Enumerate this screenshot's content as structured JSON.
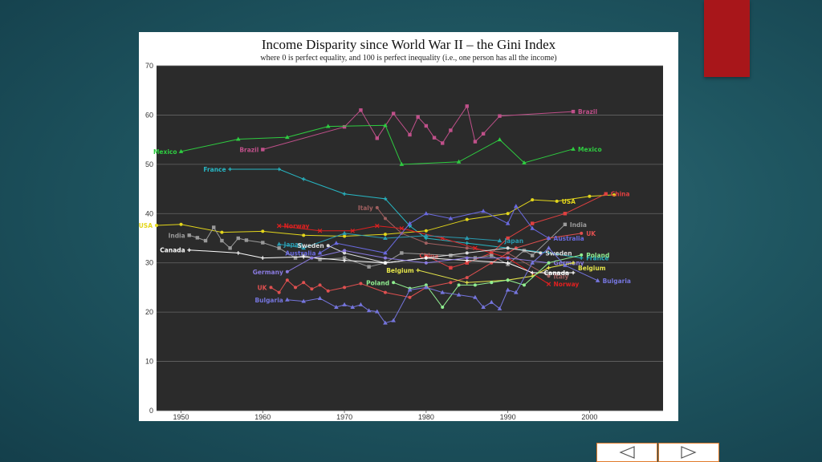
{
  "slide": {
    "title": "Income Disparity since World War II – the Gini Index",
    "subtitle": "where 0 is perfect equality, and 100 is perfect inequality (i.e., one person has all the income)",
    "accent_color": "#a8161a",
    "nav": {
      "prev_icon": "left-arrow-icon",
      "next_icon": "right-arrow-icon",
      "border_color": "#e07a2a"
    }
  },
  "chart_data": {
    "type": "line",
    "title": "Income Disparity since World War II – the Gini Index",
    "subtitle": "where 0 is perfect equality, and 100 is perfect inequality (i.e., one person has all the income)",
    "xlim": [
      1947,
      2009
    ],
    "ylim": [
      0,
      70
    ],
    "x_ticks": [
      1950,
      1960,
      1970,
      1980,
      1990,
      2000
    ],
    "y_ticks": [
      0,
      10,
      20,
      30,
      40,
      50,
      60,
      70
    ],
    "grid": "horizontal",
    "background": "#2b2b2b",
    "series": [
      {
        "name": "Brazil",
        "color": "#c0508a",
        "marker": "square",
        "points": [
          [
            1960,
            53
          ],
          [
            1970,
            57.6
          ],
          [
            1972,
            61
          ],
          [
            1974,
            55.3
          ],
          [
            1976,
            60.3
          ],
          [
            1978,
            56
          ],
          [
            1979,
            59.6
          ],
          [
            1980,
            57.8
          ],
          [
            1981,
            55.4
          ],
          [
            1982,
            54.3
          ],
          [
            1983,
            56.9
          ],
          [
            1985,
            61.8
          ],
          [
            1986,
            54.6
          ],
          [
            1987,
            56.2
          ],
          [
            1989,
            59.8
          ],
          [
            1998,
            60.7
          ]
        ],
        "labels": [
          {
            "x": 1960,
            "y": 53,
            "side": "left"
          },
          {
            "x": 1998,
            "y": 60.7,
            "side": "right"
          }
        ]
      },
      {
        "name": "Mexico",
        "color": "#2ecc40",
        "marker": "triangle",
        "points": [
          [
            1950,
            52.6
          ],
          [
            1957,
            55.1
          ],
          [
            1963,
            55.5
          ],
          [
            1968,
            57.7
          ],
          [
            1975,
            57.9
          ],
          [
            1977,
            50
          ],
          [
            1984,
            50.5
          ],
          [
            1989,
            55
          ],
          [
            1992,
            50.3
          ],
          [
            1998,
            53.1
          ]
        ],
        "labels": [
          {
            "x": 1950,
            "y": 52.6,
            "side": "left"
          },
          {
            "x": 1998,
            "y": 53.1,
            "side": "right"
          }
        ]
      },
      {
        "name": "France",
        "color": "#27b7c4",
        "marker": "plus",
        "points": [
          [
            1956,
            49
          ],
          [
            1962,
            49
          ],
          [
            1965,
            47
          ],
          [
            1970,
            44
          ],
          [
            1975,
            43
          ],
          [
            1978,
            37.5
          ],
          [
            1980,
            35
          ],
          [
            1985,
            34
          ],
          [
            1990,
            33
          ],
          [
            1995,
            32
          ],
          [
            1999,
            31
          ]
        ],
        "labels": [
          {
            "x": 1956,
            "y": 49,
            "side": "left"
          },
          {
            "x": 1999,
            "y": 31,
            "side": "right"
          }
        ]
      },
      {
        "name": "USA",
        "color": "#e3d61b",
        "marker": "dot",
        "points": [
          [
            1947,
            37.6
          ],
          [
            1950,
            37.8
          ],
          [
            1955,
            36.2
          ],
          [
            1960,
            36.4
          ],
          [
            1965,
            35.6
          ],
          [
            1970,
            35.4
          ],
          [
            1975,
            35.8
          ],
          [
            1980,
            36.5
          ],
          [
            1985,
            38.8
          ],
          [
            1990,
            40
          ],
          [
            1993,
            42.8
          ],
          [
            1996,
            42.5
          ],
          [
            2000,
            43.5
          ],
          [
            2003,
            43.8
          ]
        ],
        "labels": [
          {
            "x": 1947,
            "y": 37.6,
            "side": "left"
          },
          {
            "x": 1996,
            "y": 42.5,
            "side": "right"
          }
        ]
      },
      {
        "name": "China",
        "color": "#e04040",
        "marker": "square",
        "points": [
          [
            1980,
            31.5
          ],
          [
            1983,
            29
          ],
          [
            1985,
            30
          ],
          [
            1988,
            32
          ],
          [
            1990,
            35
          ],
          [
            1993,
            38
          ],
          [
            1997,
            40
          ],
          [
            2002,
            44
          ]
        ],
        "labels": [
          {
            "x": 1982,
            "y": 31.5,
            "side": "left"
          },
          {
            "x": 2002,
            "y": 44,
            "side": "right"
          }
        ]
      },
      {
        "name": "India",
        "color": "#9a9a9a",
        "marker": "square",
        "points": [
          [
            1951,
            35.6
          ],
          [
            1952,
            35.1
          ],
          [
            1953,
            34.5
          ],
          [
            1954,
            37.2
          ],
          [
            1955,
            34.5
          ],
          [
            1956,
            33
          ],
          [
            1957,
            35
          ],
          [
            1958,
            34.6
          ],
          [
            1960,
            34.1
          ],
          [
            1962,
            33
          ],
          [
            1964,
            31
          ],
          [
            1965,
            31.5
          ],
          [
            1967,
            30.7
          ],
          [
            1970,
            31
          ],
          [
            1973,
            29.2
          ],
          [
            1975,
            30
          ],
          [
            1977,
            32
          ],
          [
            1983,
            31.5
          ],
          [
            1986,
            31
          ],
          [
            1988,
            31.5
          ],
          [
            1990,
            29.7
          ],
          [
            1992,
            32.5
          ],
          [
            1993,
            31.5
          ],
          [
            1997,
            37.8
          ]
        ],
        "labels": [
          {
            "x": 1951,
            "y": 35.6,
            "side": "left"
          },
          {
            "x": 1997,
            "y": 37.8,
            "side": "right"
          }
        ]
      },
      {
        "name": "Italy",
        "color": "#a06060",
        "marker": "dot",
        "points": [
          [
            1974,
            41.2
          ],
          [
            1975,
            39
          ],
          [
            1977,
            36
          ],
          [
            1980,
            34
          ],
          [
            1985,
            33
          ],
          [
            1990,
            32
          ],
          [
            1995,
            27.3
          ]
        ],
        "labels": [
          {
            "x": 1974,
            "y": 41.2,
            "side": "left"
          },
          {
            "x": 1995,
            "y": 27.3,
            "side": "right"
          }
        ]
      },
      {
        "name": "Norway",
        "color": "#e02020",
        "marker": "x",
        "points": [
          [
            1962,
            37.5
          ],
          [
            1967,
            36.5
          ],
          [
            1971,
            36.5
          ],
          [
            1974,
            37.5
          ],
          [
            1977,
            37
          ],
          [
            1982,
            35
          ],
          [
            1986,
            33
          ],
          [
            1990,
            31
          ],
          [
            1995,
            25.7
          ]
        ],
        "labels": [
          {
            "x": 1962,
            "y": 37.5,
            "side": "right"
          },
          {
            "x": 1995,
            "y": 25.7,
            "side": "right"
          }
        ]
      },
      {
        "name": "UK",
        "color": "#e05050",
        "marker": "dot",
        "points": [
          [
            1961,
            25
          ],
          [
            1962,
            24
          ],
          [
            1963,
            26.5
          ],
          [
            1964,
            25
          ],
          [
            1965,
            26
          ],
          [
            1966,
            24.7
          ],
          [
            1967,
            25.5
          ],
          [
            1968,
            24.3
          ],
          [
            1970,
            25
          ],
          [
            1972,
            25.8
          ],
          [
            1975,
            24
          ],
          [
            1978,
            23
          ],
          [
            1980,
            25
          ],
          [
            1983,
            26
          ],
          [
            1985,
            27
          ],
          [
            1988,
            30
          ],
          [
            1991,
            33
          ],
          [
            1995,
            35
          ],
          [
            1999,
            36
          ]
        ],
        "labels": [
          {
            "x": 1961,
            "y": 25,
            "side": "left"
          },
          {
            "x": 1999,
            "y": 36,
            "side": "right"
          }
        ]
      },
      {
        "name": "Japan",
        "color": "#2a9bb0",
        "marker": "triangle",
        "points": [
          [
            1962,
            33.8
          ],
          [
            1965,
            33
          ],
          [
            1970,
            36
          ],
          [
            1975,
            35
          ],
          [
            1980,
            35.5
          ],
          [
            1985,
            35
          ],
          [
            1989,
            34.5
          ]
        ],
        "labels": [
          {
            "x": 1962,
            "y": 33.8,
            "side": "right"
          },
          {
            "x": 1989,
            "y": 34.5,
            "side": "right"
          }
        ]
      },
      {
        "name": "Australia",
        "color": "#6a6ae0",
        "marker": "triangle",
        "points": [
          [
            1967,
            32
          ],
          [
            1969,
            34
          ],
          [
            1975,
            32
          ],
          [
            1978,
            38
          ],
          [
            1980,
            40
          ],
          [
            1983,
            39
          ],
          [
            1987,
            40.5
          ],
          [
            1990,
            38
          ],
          [
            1991,
            41.5
          ],
          [
            1993,
            37
          ],
          [
            1995,
            35
          ]
        ],
        "labels": [
          {
            "x": 1967,
            "y": 32,
            "side": "left"
          },
          {
            "x": 1995,
            "y": 35,
            "side": "right"
          }
        ]
      },
      {
        "name": "Sweden",
        "color": "#dddddd",
        "marker": "dot",
        "points": [
          [
            1968,
            33.5
          ],
          [
            1970,
            32
          ],
          [
            1975,
            30
          ],
          [
            1980,
            31
          ],
          [
            1985,
            32
          ],
          [
            1990,
            33
          ],
          [
            1994,
            32
          ]
        ],
        "labels": [
          {
            "x": 1968,
            "y": 33.5,
            "side": "left"
          },
          {
            "x": 1994,
            "y": 32,
            "side": "right"
          }
        ]
      },
      {
        "name": "Canada",
        "color": "#ffffff",
        "marker": "plus",
        "points": [
          [
            1951,
            32.6
          ],
          [
            1957,
            32
          ],
          [
            1960,
            31
          ],
          [
            1965,
            31.2
          ],
          [
            1970,
            30.5
          ],
          [
            1975,
            30
          ],
          [
            1980,
            31
          ],
          [
            1985,
            30.5
          ],
          [
            1990,
            30
          ],
          [
            1993,
            28
          ],
          [
            1998,
            28
          ]
        ],
        "labels": [
          {
            "x": 1951,
            "y": 32.6,
            "side": "left"
          },
          {
            "x": 1998,
            "y": 28,
            "side": "left"
          }
        ]
      },
      {
        "name": "Germany",
        "color": "#8a7ae0",
        "marker": "dot",
        "points": [
          [
            1963,
            28.2
          ],
          [
            1966,
            31
          ],
          [
            1970,
            32.5
          ],
          [
            1975,
            31
          ],
          [
            1980,
            30
          ],
          [
            1985,
            31
          ],
          [
            1990,
            31
          ],
          [
            1995,
            30
          ]
        ],
        "labels": [
          {
            "x": 1963,
            "y": 28.2,
            "side": "left"
          },
          {
            "x": 1995,
            "y": 30,
            "side": "right"
          }
        ]
      },
      {
        "name": "Belgium",
        "color": "#e5e54a",
        "marker": "plus",
        "points": [
          [
            1979,
            28.5
          ],
          [
            1985,
            26
          ],
          [
            1990,
            26.5
          ],
          [
            1993,
            27.3
          ],
          [
            1995,
            29
          ],
          [
            1998,
            30
          ]
        ],
        "labels": [
          {
            "x": 1979,
            "y": 28.5,
            "side": "left"
          },
          {
            "x": 1998,
            "y": 29,
            "side": "right"
          }
        ]
      },
      {
        "name": "Poland",
        "color": "#90ee90",
        "marker": "dot",
        "points": [
          [
            1976,
            26
          ],
          [
            1978,
            24.8
          ],
          [
            1980,
            25.5
          ],
          [
            1982,
            21
          ],
          [
            1984,
            25.5
          ],
          [
            1986,
            25.5
          ],
          [
            1988,
            26
          ],
          [
            1990,
            26.5
          ],
          [
            1992,
            25.5
          ],
          [
            1995,
            30
          ],
          [
            1999,
            31.6
          ]
        ],
        "labels": [
          {
            "x": 1976,
            "y": 26,
            "side": "left"
          },
          {
            "x": 1999,
            "y": 31.6,
            "side": "right"
          }
        ]
      },
      {
        "name": "Bulgaria",
        "color": "#7575dd",
        "marker": "triangle",
        "points": [
          [
            1963,
            22.5
          ],
          [
            1965,
            22.2
          ],
          [
            1967,
            22.8
          ],
          [
            1969,
            21
          ],
          [
            1970,
            21.5
          ],
          [
            1971,
            21
          ],
          [
            1972,
            21.5
          ],
          [
            1973,
            20.3
          ],
          [
            1974,
            20.1
          ],
          [
            1975,
            17.8
          ],
          [
            1976,
            18.3
          ],
          [
            1978,
            24.5
          ],
          [
            1980,
            25
          ],
          [
            1982,
            24
          ],
          [
            1984,
            23.5
          ],
          [
            1986,
            23
          ],
          [
            1987,
            21
          ],
          [
            1988,
            22
          ],
          [
            1989,
            20.7
          ],
          [
            1990,
            24.5
          ],
          [
            1991,
            24
          ],
          [
            1993,
            30
          ],
          [
            1995,
            33
          ],
          [
            1997,
            29.5
          ],
          [
            2001,
            26.4
          ]
        ],
        "labels": [
          {
            "x": 1963,
            "y": 22.5,
            "side": "left"
          },
          {
            "x": 2001,
            "y": 26.4,
            "side": "right"
          }
        ]
      }
    ]
  }
}
